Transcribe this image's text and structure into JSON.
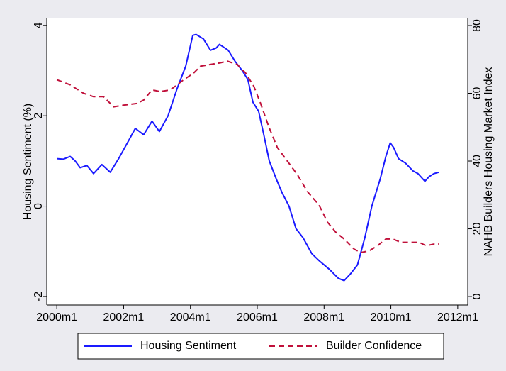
{
  "chart_data": {
    "type": "line",
    "y_label": "Housing Sentiment (%)",
    "y2_label": "NAHB Builders Housing Market Index",
    "xlim": [
      1999.7,
      2012.3
    ],
    "xticks": [
      {
        "value": 2000,
        "label": "2000m1"
      },
      {
        "value": 2002,
        "label": "2002m1"
      },
      {
        "value": 2004,
        "label": "2004m1"
      },
      {
        "value": 2006,
        "label": "2006m1"
      },
      {
        "value": 2008,
        "label": "2008m1"
      },
      {
        "value": 2010,
        "label": "2010m1"
      },
      {
        "value": 2012,
        "label": "2012m1"
      }
    ],
    "ylim": [
      -2.19,
      4.17
    ],
    "yticks": [
      -2,
      0,
      2,
      4
    ],
    "y2lim": [
      -2.5,
      82.3
    ],
    "y2ticks": [
      0,
      20,
      40,
      60,
      80
    ],
    "legend": "bottom",
    "series": [
      {
        "name": "Housing Sentiment",
        "color": "#1a1aff",
        "dash": "solid",
        "x": [
          2000.0,
          2000.2,
          2000.4,
          2000.55,
          2000.7,
          2000.9,
          2001.1,
          2001.35,
          2001.6,
          2001.85,
          2002.15,
          2002.35,
          2002.6,
          2002.85,
          2003.07,
          2003.33,
          2003.6,
          2003.86,
          2004.07,
          2004.17,
          2004.39,
          2004.6,
          2004.77,
          2004.87,
          2005.13,
          2005.34,
          2005.55,
          2005.72,
          2005.87,
          2006.04,
          2006.19,
          2006.36,
          2006.57,
          2006.74,
          2006.95,
          2007.16,
          2007.37,
          2007.63,
          2007.84,
          2008.16,
          2008.43,
          2008.6,
          2008.79,
          2009.0,
          2009.22,
          2009.43,
          2009.68,
          2009.85,
          2009.98,
          2010.08,
          2010.23,
          2010.44,
          2010.66,
          2010.81,
          2011.02,
          2011.14,
          2011.29,
          2011.44
        ],
        "values": [
          1.05,
          1.04,
          1.1,
          1.0,
          0.85,
          0.9,
          0.72,
          0.92,
          0.75,
          1.05,
          1.45,
          1.72,
          1.58,
          1.88,
          1.65,
          2.0,
          2.6,
          3.1,
          3.78,
          3.8,
          3.7,
          3.45,
          3.5,
          3.58,
          3.45,
          3.2,
          3.0,
          2.8,
          2.3,
          2.1,
          1.6,
          1.0,
          0.6,
          0.3,
          0.0,
          -0.5,
          -0.7,
          -1.05,
          -1.2,
          -1.4,
          -1.6,
          -1.65,
          -1.5,
          -1.3,
          -0.7,
          0.0,
          0.6,
          1.1,
          1.4,
          1.3,
          1.05,
          0.95,
          0.78,
          0.72,
          0.55,
          0.65,
          0.72,
          0.75
        ]
      },
      {
        "name": "Builder Confidence",
        "color": "#c0103a",
        "dash": "dashed",
        "axis": "y2",
        "x": [
          2000.0,
          2000.4,
          2000.8,
          2001.1,
          2001.4,
          2001.7,
          2002.0,
          2002.4,
          2002.6,
          2002.85,
          2003.1,
          2003.4,
          2003.8,
          2004.1,
          2004.3,
          2004.6,
          2004.9,
          2005.1,
          2005.4,
          2005.65,
          2005.9,
          2006.1,
          2006.35,
          2006.6,
          2006.9,
          2007.2,
          2007.5,
          2007.85,
          2008.1,
          2008.35,
          2008.6,
          2008.9,
          2009.1,
          2009.35,
          2009.6,
          2009.85,
          2010.05,
          2010.3,
          2010.6,
          2010.85,
          2011.05,
          2011.3,
          2011.45
        ],
        "values": [
          64,
          62.5,
          60,
          59,
          59,
          56,
          56.5,
          57,
          58,
          61,
          60.5,
          61,
          64,
          66,
          68,
          68.5,
          69,
          69.5,
          68.5,
          66,
          62,
          57,
          50,
          44,
          40,
          36,
          31,
          27,
          22,
          19,
          17,
          14,
          13,
          13.5,
          15,
          17,
          17,
          16,
          16,
          16,
          15,
          15.5,
          15.5
        ]
      }
    ]
  }
}
